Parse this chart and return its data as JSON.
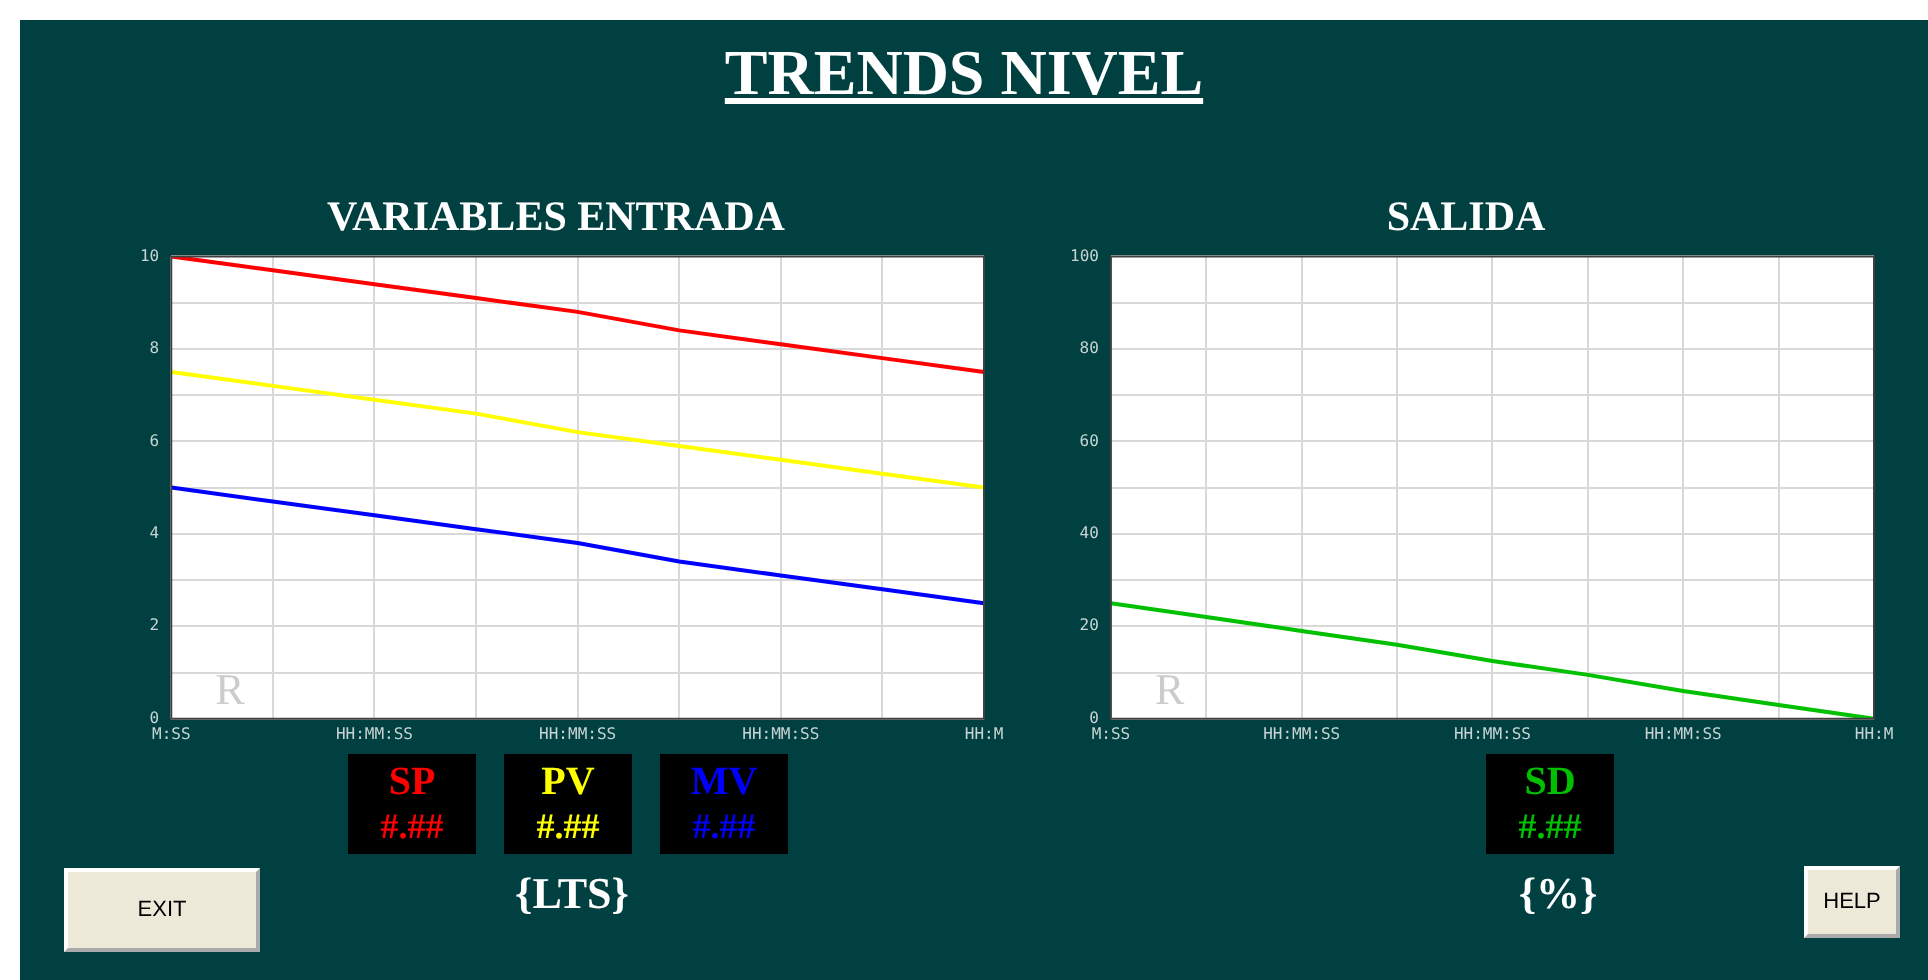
{
  "chart_data": [
    {
      "type": "line",
      "title": "VARIABLES ENTRADA",
      "categories": [
        "M:SS",
        null,
        "HH:MM:SS",
        null,
        "HH:MM:SS",
        null,
        "HH:MM:SS",
        null,
        "HH:M"
      ],
      "series": [
        {
          "name": "SP",
          "color": "#ff0000",
          "values": [
            10,
            9.7,
            9.4,
            9.1,
            8.8,
            8.4,
            8.1,
            7.8,
            7.5
          ]
        },
        {
          "name": "PV",
          "color": "#ffff00",
          "values": [
            7.5,
            7.2,
            6.9,
            6.6,
            6.2,
            5.9,
            5.6,
            5.3,
            5.0
          ]
        },
        {
          "name": "MV",
          "color": "#0000ff",
          "values": [
            5,
            4.7,
            4.4,
            4.1,
            3.8,
            3.4,
            3.1,
            2.8,
            2.5
          ]
        }
      ],
      "ylim": [
        0,
        10
      ],
      "yticks": [
        0,
        {
          "value": 1,
          "label": null
        },
        2,
        {
          "value": 3,
          "label": null
        },
        4,
        {
          "value": 5,
          "label": null
        },
        6,
        {
          "value": 7,
          "label": null
        },
        8,
        {
          "value": 9,
          "label": null
        },
        10
      ],
      "grid": true,
      "legend": "bottom",
      "marker": "none",
      "line_style": "solid",
      "annotations": [
        "TRENDS NIVEL",
        "R",
        "#.##",
        "#.##",
        "#.##",
        "{LTS}",
        "EXIT"
      ]
    },
    {
      "type": "line",
      "title": "SALIDA",
      "categories": [
        "M:SS",
        null,
        "HH:MM:SS",
        null,
        "HH:MM:SS",
        null,
        "HH:MM:SS",
        null,
        "HH:M"
      ],
      "series": [
        {
          "name": "SD",
          "color": "#00c000",
          "values": [
            25,
            22,
            19,
            16,
            12.5,
            9.5,
            6,
            3,
            0
          ]
        }
      ],
      "ylim": [
        0,
        100
      ],
      "yticks": [
        0,
        {
          "value": 10,
          "label": null
        },
        20,
        {
          "value": 30,
          "label": null
        },
        40,
        {
          "value": 50,
          "label": null
        },
        60,
        {
          "value": 70,
          "label": null
        },
        80,
        {
          "value": 90,
          "label": null
        },
        100
      ],
      "grid": true,
      "legend": "bottom",
      "marker": "none",
      "line_style": "solid",
      "annotations": [
        "R",
        "#.##",
        "{%}",
        "HELP"
      ]
    }
  ]
}
